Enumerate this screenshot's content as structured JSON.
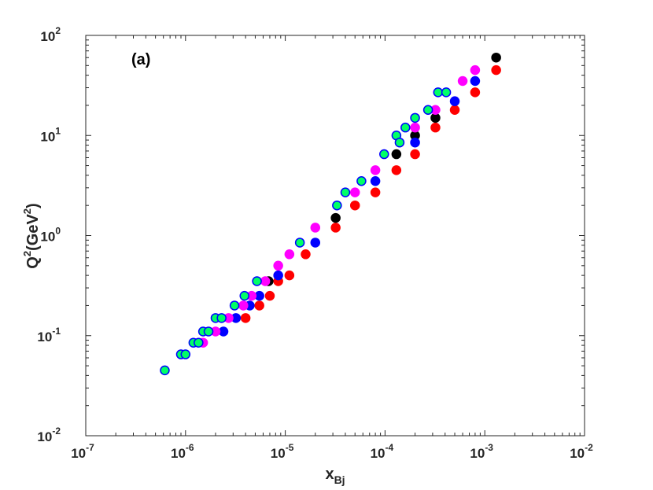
{
  "chart_data": {
    "type": "scatter",
    "panel_label": "(a)",
    "xscale": "log",
    "yscale": "log",
    "xlim": [
      1e-07,
      0.01
    ],
    "ylim": [
      0.01,
      100
    ],
    "x_ticks": [
      {
        "base": "10",
        "exp": "-7",
        "value": 1e-07
      },
      {
        "base": "10",
        "exp": "-6",
        "value": 1e-06
      },
      {
        "base": "10",
        "exp": "-5",
        "value": 1e-05
      },
      {
        "base": "10",
        "exp": "-4",
        "value": 0.0001
      },
      {
        "base": "10",
        "exp": "-3",
        "value": 0.001
      },
      {
        "base": "10",
        "exp": "-2",
        "value": 0.01
      }
    ],
    "y_ticks": [
      {
        "base": "10",
        "exp": "-2",
        "value": 0.01
      },
      {
        "base": "10",
        "exp": "-1",
        "value": 0.1
      },
      {
        "base": "10",
        "exp": "0",
        "value": 1
      },
      {
        "base": "10",
        "exp": "1",
        "value": 10
      },
      {
        "base": "10",
        "exp": "2",
        "value": 100
      }
    ],
    "xlabel": {
      "main": "x",
      "sub": "Bj"
    },
    "ylabel": {
      "q": "Q",
      "sup1": "2",
      "unit_open": "(GeV",
      "sup2": "2",
      "unit_close": ")"
    },
    "grid": false,
    "series": [
      {
        "color": "#ff0000",
        "edge": "#ff0000",
        "points": [
          [
            4e-06,
            0.15
          ],
          [
            5.5e-06,
            0.2
          ],
          [
            7e-06,
            0.25
          ],
          [
            8.5e-06,
            0.35
          ],
          [
            1.1e-05,
            0.4
          ],
          [
            1.6e-05,
            0.65
          ],
          [
            3.2e-05,
            1.2
          ],
          [
            5e-05,
            2.0
          ],
          [
            8e-05,
            2.7
          ],
          [
            0.00013,
            4.5
          ],
          [
            0.0002,
            6.5
          ],
          [
            0.00032,
            12.0
          ],
          [
            0.0005,
            18.0
          ],
          [
            0.0008,
            27.0
          ],
          [
            0.0013,
            45.0
          ]
        ]
      },
      {
        "color": "#000000",
        "edge": "#000000",
        "points": [
          [
            6.8e-06,
            0.35
          ],
          [
            3.2e-05,
            1.5
          ],
          [
            0.00013,
            6.5
          ],
          [
            0.0002,
            10.0
          ],
          [
            0.00032,
            15.0
          ],
          [
            0.0013,
            60.0
          ]
        ]
      },
      {
        "color": "#0000ff",
        "edge": "#0000ff",
        "points": [
          [
            2.4e-06,
            0.11
          ],
          [
            3.2e-06,
            0.15
          ],
          [
            4.4e-06,
            0.2
          ],
          [
            5.5e-06,
            0.25
          ],
          [
            8.5e-06,
            0.4
          ],
          [
            2e-05,
            0.85
          ],
          [
            8e-05,
            3.5
          ],
          [
            0.0002,
            8.5
          ],
          [
            0.0005,
            22.0
          ],
          [
            0.0008,
            35.0
          ]
        ]
      },
      {
        "color": "#ff00ff",
        "edge": "#ff00ff",
        "points": [
          [
            1.5e-06,
            0.085
          ],
          [
            2e-06,
            0.11
          ],
          [
            2.7e-06,
            0.15
          ],
          [
            3.8e-06,
            0.2
          ],
          [
            4.6e-06,
            0.25
          ],
          [
            6.3e-06,
            0.35
          ],
          [
            8.5e-06,
            0.5
          ],
          [
            1.1e-05,
            0.65
          ],
          [
            2e-05,
            1.2
          ],
          [
            5e-05,
            2.7
          ],
          [
            8e-05,
            4.5
          ],
          [
            0.0002,
            12.0
          ],
          [
            0.00032,
            18.0
          ],
          [
            0.0006,
            35.0
          ],
          [
            0.0008,
            45.0
          ]
        ]
      },
      {
        "color": "#00ff66",
        "edge": "#0000ff",
        "points": [
          [
            6.2e-07,
            0.045
          ],
          [
            9e-07,
            0.065
          ],
          [
            1e-06,
            0.065
          ],
          [
            1.2e-06,
            0.085
          ],
          [
            1.35e-06,
            0.085
          ],
          [
            1.5e-06,
            0.11
          ],
          [
            1.7e-06,
            0.11
          ],
          [
            2e-06,
            0.15
          ],
          [
            2.3e-06,
            0.15
          ],
          [
            3.1e-06,
            0.2
          ],
          [
            3.9e-06,
            0.25
          ],
          [
            5.2e-06,
            0.35
          ],
          [
            1.4e-05,
            0.85
          ],
          [
            3.3e-05,
            2.0
          ],
          [
            4e-05,
            2.7
          ],
          [
            5.8e-05,
            3.5
          ],
          [
            9.8e-05,
            6.5
          ],
          [
            0.00013,
            10.0
          ],
          [
            0.00014,
            8.5
          ],
          [
            0.00016,
            12.0
          ],
          [
            0.0002,
            15.0
          ],
          [
            0.00027,
            18.0
          ],
          [
            0.00034,
            27.0
          ],
          [
            0.00041,
            27.0
          ]
        ]
      }
    ]
  }
}
